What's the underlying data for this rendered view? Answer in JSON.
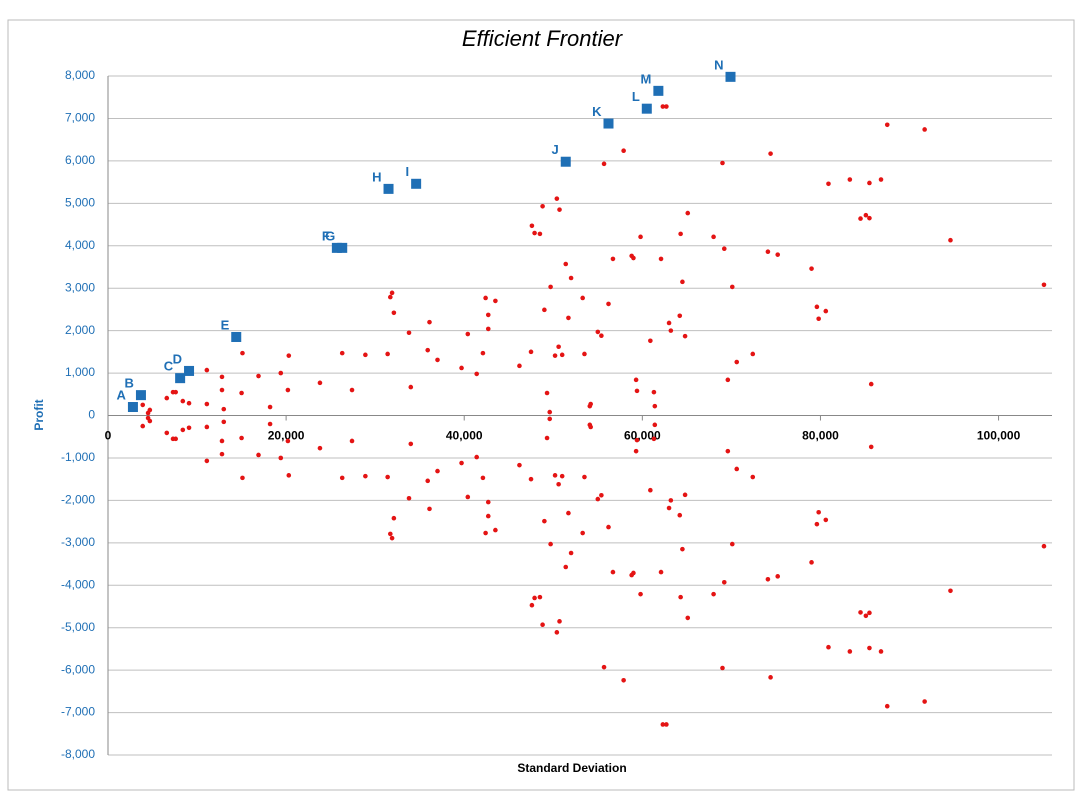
{
  "chart_data": {
    "type": "scatter",
    "title": "Efficient Frontier",
    "x_label": "Standard Deviation",
    "y_label": "Profit",
    "xlim": [
      0,
      106000
    ],
    "ylim": [
      -8000,
      8000
    ],
    "xticks": [
      0,
      {
        "value": 20000,
        "label": "20,000"
      },
      {
        "value": 40000,
        "label": "40,000"
      },
      {
        "value": 60000,
        "label": "60,000"
      },
      {
        "value": 80000,
        "label": "80,000"
      },
      {
        "value": 100000,
        "label": "100,000"
      }
    ],
    "yticks": [
      {
        "value": -8000,
        "label": "-8,000"
      },
      {
        "value": -7000,
        "label": "-7,000"
      },
      {
        "value": -6000,
        "label": "-6,000"
      },
      {
        "value": -5000,
        "label": "-5,000"
      },
      {
        "value": -4000,
        "label": "-4,000"
      },
      {
        "value": -3000,
        "label": "-3,000"
      },
      {
        "value": -2000,
        "label": "-2,000"
      },
      {
        "value": -1000,
        "label": "-1,000"
      },
      0,
      {
        "value": 1000,
        "label": "1,000"
      },
      {
        "value": 2000,
        "label": "2,000"
      },
      {
        "value": 3000,
        "label": "3,000"
      },
      {
        "value": 4000,
        "label": "4,000"
      },
      {
        "value": 5000,
        "label": "5,000"
      },
      {
        "value": 6000,
        "label": "6,000"
      },
      {
        "value": 7000,
        "label": "7,000"
      },
      {
        "value": 8000,
        "label": "8,000"
      }
    ],
    "grid": true,
    "portfolios": {
      "color": "#e41414",
      "x": [
        3900,
        4700,
        4500,
        6600,
        7300,
        7600,
        8400,
        9100,
        11100,
        11100,
        12800,
        12800,
        13000,
        15100,
        15000,
        16900,
        18200,
        19400,
        20300,
        20200,
        23800,
        26300,
        27400,
        28900,
        31400,
        31700,
        31900,
        32100,
        34000,
        33800,
        36100,
        35900,
        37000,
        39700,
        40400,
        41400,
        42100,
        42400,
        42700,
        42700,
        43500,
        46200,
        47500,
        47600,
        47900,
        48500,
        48800,
        49000,
        49300,
        49600,
        49700,
        50400,
        50700,
        50600,
        51000,
        51400,
        52000,
        51700,
        50200,
        53300,
        53500,
        54100,
        54200,
        55000,
        55400,
        55700,
        56200,
        56700,
        57900,
        58800,
        59000,
        59300,
        59400,
        59800,
        60900,
        61300,
        61400,
        62100,
        62300,
        62700,
        63000,
        63200,
        64200,
        64300,
        64500,
        64800,
        65100,
        68000,
        69000,
        69200,
        69600,
        70100,
        70600,
        72400,
        74100,
        74400,
        75200,
        79000,
        79600,
        79800,
        80600,
        80900,
        83300,
        84500,
        85100,
        85500,
        85500,
        85700,
        86800,
        87500,
        91700,
        94600,
        105100,
        3900,
        4700,
        4500,
        6600,
        7300,
        7600,
        8400,
        9100,
        11100,
        11100,
        12800,
        12800,
        13000,
        15100,
        15000,
        16900,
        18200,
        19400,
        20300,
        20200,
        23800,
        26300,
        27400,
        28900,
        31400,
        31700,
        31900,
        32100,
        34000,
        33800,
        36100,
        35900,
        37000,
        39700,
        40400,
        41400,
        42100,
        42400,
        42700,
        42700,
        43500,
        46200,
        47500,
        47600,
        47900,
        48500,
        48800,
        49000,
        49300,
        49600,
        49700,
        50400,
        50700,
        50600,
        51000,
        51400,
        52000,
        51700,
        50200,
        53300,
        53500,
        54100,
        54200,
        55000,
        55400,
        55700,
        56200,
        56700,
        57900,
        58800,
        59000,
        59300,
        59400,
        59800,
        60900,
        61300,
        61400,
        62100,
        62300,
        62700,
        63000,
        63200,
        64200,
        64300,
        64500,
        64800,
        65100,
        68000,
        69000,
        69200,
        69600,
        70100,
        70600,
        72400,
        74100,
        74400,
        75200,
        79000,
        79600,
        79800,
        80600,
        80900,
        83300,
        84500,
        85100,
        85500,
        85500,
        85700,
        86800,
        87500,
        91700,
        94600,
        105100
      ],
      "y": [
        250,
        130,
        60,
        410,
        550,
        550,
        340,
        290,
        1070,
        270,
        910,
        600,
        150,
        1470,
        530,
        930,
        200,
        1000,
        1410,
        600,
        770,
        1470,
        600,
        1430,
        1450,
        2790,
        2890,
        2420,
        670,
        1950,
        2200,
        1540,
        1310,
        1120,
        1920,
        980,
        1470,
        2770,
        2370,
        2040,
        2700,
        1170,
        1500,
        4470,
        4300,
        4280,
        4930,
        2490,
        530,
        80,
        3030,
        5110,
        4850,
        1620,
        1430,
        3570,
        3240,
        2300,
        1410,
        2770,
        1450,
        220,
        270,
        1970,
        1880,
        5930,
        2630,
        3690,
        6240,
        3760,
        3710,
        840,
        580,
        4210,
        1760,
        550,
        220,
        3690,
        7280,
        7280,
        2180,
        2000,
        2350,
        4280,
        3150,
        1870,
        4770,
        4210,
        5950,
        3930,
        840,
        3030,
        1260,
        1450,
        3860,
        6170,
        3790,
        3460,
        2560,
        2280,
        2460,
        5460,
        5560,
        4640,
        4720,
        5480,
        4650,
        740,
        5560,
        6850,
        6740,
        4130,
        3080,
        -250,
        -130,
        -60,
        -410,
        -550,
        -550,
        -340,
        -290,
        -1070,
        -270,
        -910,
        -600,
        -150,
        -1470,
        -530,
        -930,
        -200,
        -1000,
        -1410,
        -600,
        -770,
        -1470,
        -600,
        -1430,
        -1450,
        -2790,
        -2890,
        -2420,
        -670,
        -1950,
        -2200,
        -1540,
        -1310,
        -1120,
        -1920,
        -980,
        -1470,
        -2770,
        -2370,
        -2040,
        -2700,
        -1170,
        -1500,
        -4470,
        -4300,
        -4280,
        -4930,
        -2490,
        -530,
        -80,
        -3030,
        -5110,
        -4850,
        -1620,
        -1430,
        -3570,
        -3240,
        -2300,
        -1410,
        -2770,
        -1450,
        -220,
        -270,
        -1970,
        -1880,
        -5930,
        -2630,
        -3690,
        -6240,
        -3760,
        -3710,
        -840,
        -580,
        -4210,
        -1760,
        -550,
        -220,
        -3690,
        -7280,
        -7280,
        -2180,
        -2000,
        -2350,
        -4280,
        -3150,
        -1870,
        -4770,
        -4210,
        -5950,
        -3930,
        -840,
        -3030,
        -1260,
        -1450,
        -3860,
        -6170,
        -3790,
        -3460,
        -2560,
        -2280,
        -2460,
        -5460,
        -5560,
        -4640,
        -4720,
        -5480,
        -4650,
        -740,
        -5560,
        -6850,
        -6740,
        -4130,
        -3080
      ]
    },
    "frontier": {
      "color": "#1f6fb5",
      "labels": [
        "A",
        "B",
        "C",
        "D",
        "E",
        "F",
        "G",
        "H",
        "I",
        "J",
        "K",
        "L",
        "M",
        "N"
      ],
      "x": [
        2800,
        3700,
        8100,
        9100,
        14400,
        25700,
        26300,
        31500,
        34600,
        51400,
        56200,
        60500,
        61800,
        69900
      ],
      "y": [
        200,
        480,
        880,
        1050,
        1850,
        3950,
        3950,
        5340,
        5460,
        5980,
        6880,
        7230,
        7650,
        7980
      ]
    }
  }
}
